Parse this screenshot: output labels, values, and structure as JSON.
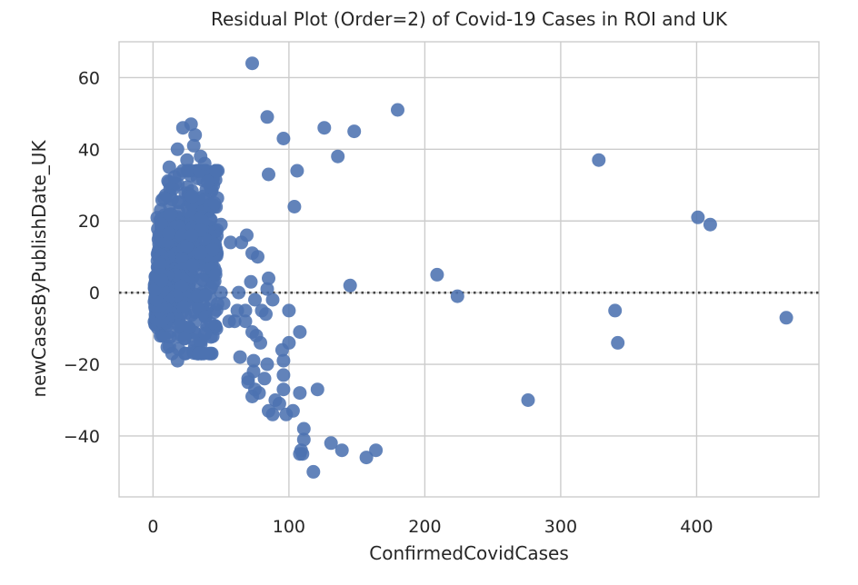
{
  "chart_data": {
    "type": "scatter",
    "title": "Residual Plot (Order=2) of Covid-19 Cases in ROI and UK",
    "xlabel": "ConfirmedCovidCases",
    "ylabel": "newCasesByPublishDate_UK",
    "xlim": [
      -25,
      490
    ],
    "ylim": [
      -57,
      70
    ],
    "xticks": [
      0,
      100,
      200,
      300,
      400
    ],
    "yticks": [
      -40,
      -20,
      0,
      20,
      40,
      60
    ],
    "grid": true,
    "reference_line": {
      "y": 0,
      "style": "dotted"
    },
    "point_color": "#4c72b0",
    "points": [
      [
        73,
        64
      ],
      [
        180,
        51
      ],
      [
        84,
        49
      ],
      [
        126,
        46
      ],
      [
        148,
        45
      ],
      [
        96,
        43
      ],
      [
        136,
        38
      ],
      [
        106,
        34
      ],
      [
        85,
        33
      ],
      [
        104,
        24
      ],
      [
        328,
        37
      ],
      [
        401,
        21
      ],
      [
        410,
        19
      ],
      [
        209,
        5
      ],
      [
        145,
        2
      ],
      [
        224,
        -1
      ],
      [
        340,
        -5
      ],
      [
        466,
        -7
      ],
      [
        342,
        -14
      ],
      [
        276,
        -30
      ],
      [
        121,
        -27
      ],
      [
        108,
        -28
      ],
      [
        96,
        -27
      ],
      [
        98,
        -34
      ],
      [
        103,
        -33
      ],
      [
        111,
        -38
      ],
      [
        111,
        -41
      ],
      [
        109,
        -44
      ],
      [
        108,
        -45
      ],
      [
        131,
        -42
      ],
      [
        139,
        -44
      ],
      [
        157,
        -46
      ],
      [
        164,
        -44
      ],
      [
        118,
        -50
      ],
      [
        110,
        -45
      ],
      [
        100,
        -5
      ],
      [
        108,
        -11
      ],
      [
        100,
        -14
      ],
      [
        95,
        -16
      ],
      [
        96,
        -19
      ],
      [
        96,
        -23
      ],
      [
        93,
        -31
      ],
      [
        90,
        -30
      ],
      [
        88,
        -34
      ],
      [
        85,
        -33
      ],
      [
        78,
        -28
      ],
      [
        75,
        -27
      ],
      [
        70,
        -24
      ],
      [
        73,
        -29
      ],
      [
        74,
        -22
      ],
      [
        74,
        -19
      ],
      [
        70,
        -25
      ],
      [
        82,
        -24
      ],
      [
        84,
        -20
      ],
      [
        79,
        -14
      ],
      [
        76,
        -12
      ],
      [
        73,
        -11
      ],
      [
        64,
        -18
      ],
      [
        68,
        -8
      ],
      [
        62,
        -5
      ],
      [
        60,
        -8
      ],
      [
        68,
        -5
      ],
      [
        80,
        -5
      ],
      [
        83,
        -6
      ],
      [
        88,
        -2
      ],
      [
        84,
        1
      ],
      [
        85,
        4
      ],
      [
        77,
        10
      ],
      [
        73,
        11
      ],
      [
        69,
        16
      ],
      [
        65,
        14
      ],
      [
        57,
        14
      ],
      [
        72,
        3
      ],
      [
        63,
        0
      ],
      [
        75,
        -2
      ],
      [
        50,
        19
      ],
      [
        45,
        25
      ],
      [
        40,
        31
      ],
      [
        35,
        38
      ],
      [
        31,
        44
      ],
      [
        28,
        47
      ],
      [
        22,
        46
      ],
      [
        18,
        40
      ],
      [
        12,
        35
      ],
      [
        30,
        41
      ],
      [
        25,
        37
      ],
      [
        38,
        36
      ],
      [
        44,
        12
      ],
      [
        46,
        5
      ],
      [
        50,
        0
      ],
      [
        52,
        -3
      ],
      [
        56,
        -8
      ],
      [
        18,
        -19
      ],
      [
        14,
        -17
      ],
      [
        12,
        -15
      ]
    ],
    "dense_cluster": {
      "x_range": [
        0,
        48
      ],
      "y_range": [
        -17,
        34
      ]
    }
  }
}
